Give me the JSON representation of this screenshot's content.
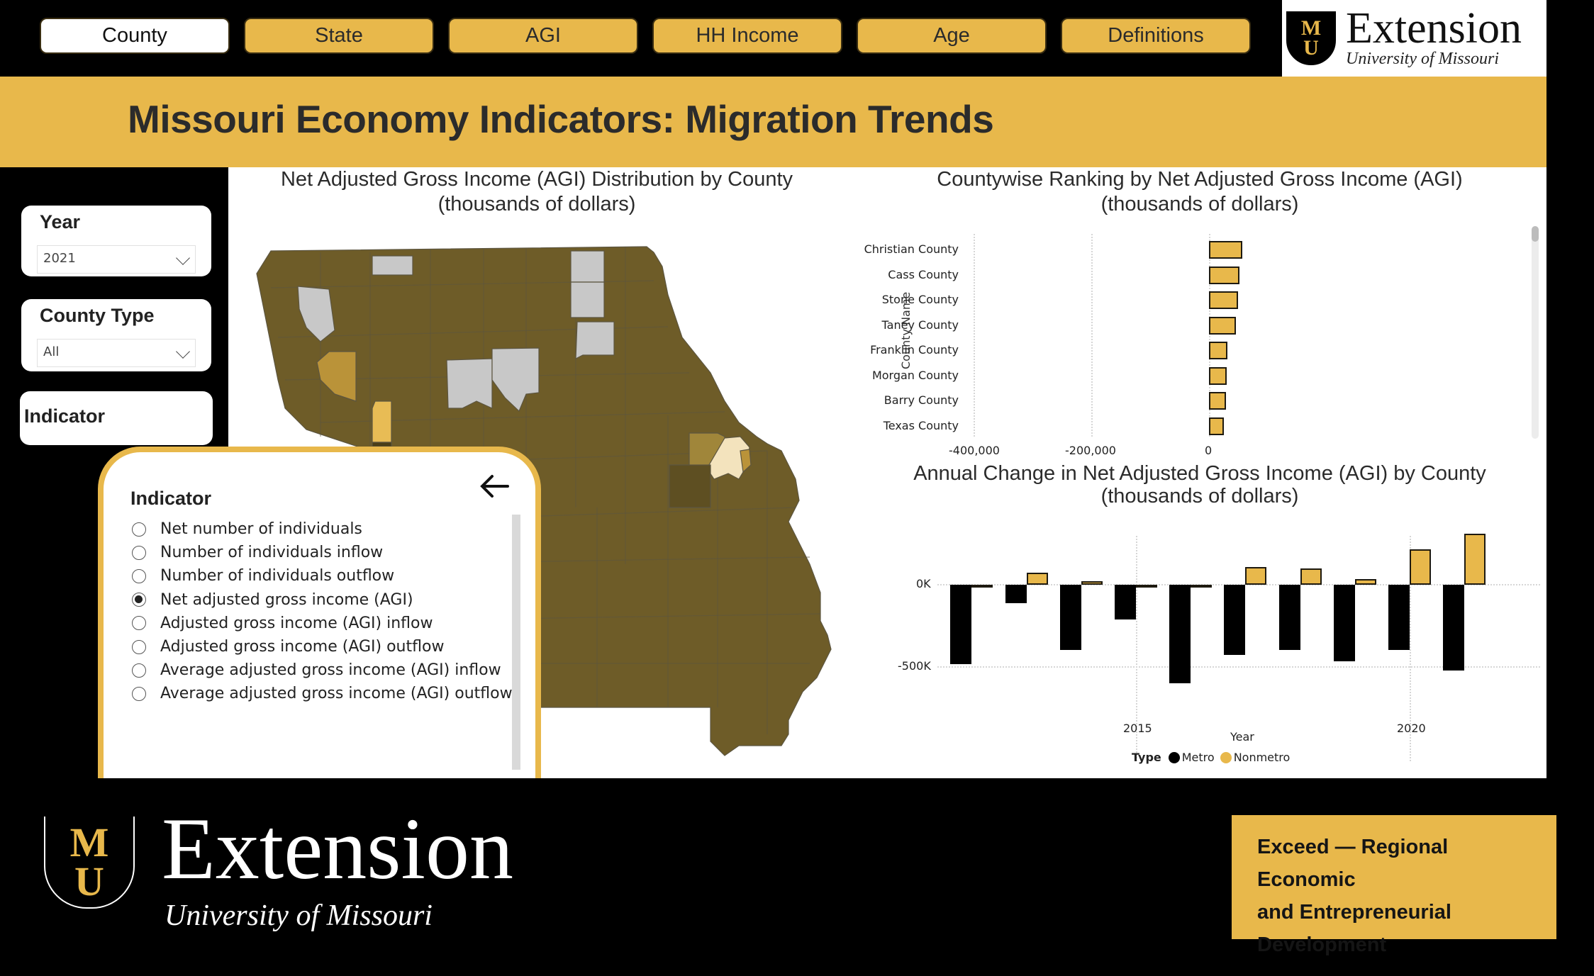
{
  "nav": {
    "tabs": [
      {
        "label": "County",
        "active": true
      },
      {
        "label": "State",
        "active": false
      },
      {
        "label": "AGI",
        "active": false
      },
      {
        "label": "HH Income",
        "active": false
      },
      {
        "label": "Age",
        "active": false
      },
      {
        "label": "Definitions",
        "active": false
      }
    ]
  },
  "logo": {
    "shield_letters": [
      "M",
      "U"
    ],
    "name": "Extension",
    "subtitle": "University of Missouri"
  },
  "header": {
    "title": "Missouri Economy Indicators: Migration Trends"
  },
  "filters": {
    "year": {
      "label": "Year",
      "value": "2021"
    },
    "county_type": {
      "label": "County Type",
      "value": "All"
    },
    "indicator": {
      "label": "Indicator"
    }
  },
  "indicator_panel": {
    "title": "Indicator",
    "back_icon": "arrow-left-icon",
    "options": [
      {
        "label": "Net number of individuals",
        "selected": false
      },
      {
        "label": "Number of individuals inflow",
        "selected": false
      },
      {
        "label": "Number of individuals outflow",
        "selected": false
      },
      {
        "label": "Net adjusted gross income (AGI)",
        "selected": true
      },
      {
        "label": "Adjusted gross income (AGI) inflow",
        "selected": false
      },
      {
        "label": "Adjusted gross income (AGI) outflow",
        "selected": false
      },
      {
        "label": "Average adjusted gross income (AGI) inflow",
        "selected": false
      },
      {
        "label": "Average adjusted gross income (AGI) outflow",
        "selected": false
      }
    ]
  },
  "map": {
    "title_line1": "Net Adjusted Gross Income (AGI) Distribution by County",
    "title_line2": "(thousands of dollars)",
    "colors": {
      "base": "#6E5C28",
      "dark": "#4A3E17",
      "mid": "#BA9339",
      "bright": "#E8BC55",
      "pale": "#F3E3BD",
      "no_data": "#C8C8C8",
      "border": "#5a5a4a"
    }
  },
  "colors": {
    "gold": "#E8B84B",
    "black": "#000000",
    "white": "#FFFFFF"
  },
  "chart_data": [
    {
      "type": "bar",
      "orientation": "horizontal",
      "title": "Countywise Ranking by Net Adjusted Gross Income (AGI) (thousands of dollars)",
      "title_line1": "Countywise Ranking by Net Adjusted Gross Income (AGI)",
      "title_line2": "(thousands of dollars)",
      "ylabel": "County Name",
      "xlabel": "",
      "categories": [
        "Christian County",
        "Cass County",
        "Stone County",
        "Taney County",
        "Franklin County",
        "Morgan County",
        "Barry County",
        "Texas County"
      ],
      "values": [
        57000,
        52000,
        49000,
        46000,
        31000,
        30000,
        29000,
        25000
      ],
      "xticks": [
        "-400,000",
        "-200,000",
        "0"
      ],
      "xlim": [
        -400000,
        50000
      ],
      "grid": true,
      "bar_color": "#E8B84B"
    },
    {
      "type": "bar",
      "orientation": "vertical",
      "title": "Annual Change in Net Adjusted Gross Income (AGI) by County (thousands of dollars)",
      "title_line1": "Annual Change in Net Adjusted Gross Income (AGI) by County",
      "title_line2": "(thousands of dollars)",
      "xlabel": "Year",
      "ylabel": "",
      "x": [
        2012,
        2013,
        2014,
        2015,
        2016,
        2017,
        2018,
        2019,
        2020,
        2021
      ],
      "xticks": [
        "2015",
        "2020"
      ],
      "yticks": [
        "0K",
        "-500K"
      ],
      "ylim": [
        -700000,
        350000
      ],
      "series": [
        {
          "name": "Metro",
          "color": "#000000",
          "values": [
            -483000,
            -112000,
            -397000,
            -211000,
            -599000,
            -427000,
            -397000,
            -466000,
            -397000,
            -522000
          ]
        },
        {
          "name": "Nonmetro",
          "color": "#E8B84B",
          "values": [
            -15000,
            73000,
            20000,
            -3000,
            -5000,
            108000,
            99000,
            35000,
            216000,
            310000
          ]
        }
      ],
      "legend": {
        "title": "Type",
        "items": [
          "Metro",
          "Nonmetro"
        ],
        "position": "bottom"
      },
      "grid": true
    }
  ],
  "footer": {
    "logo_name": "Extension",
    "logo_subtitle": "University of Missouri",
    "program_line1": "Exceed — Regional Economic",
    "program_line2": "and Entrepreneurial",
    "program_line3": "Development"
  }
}
